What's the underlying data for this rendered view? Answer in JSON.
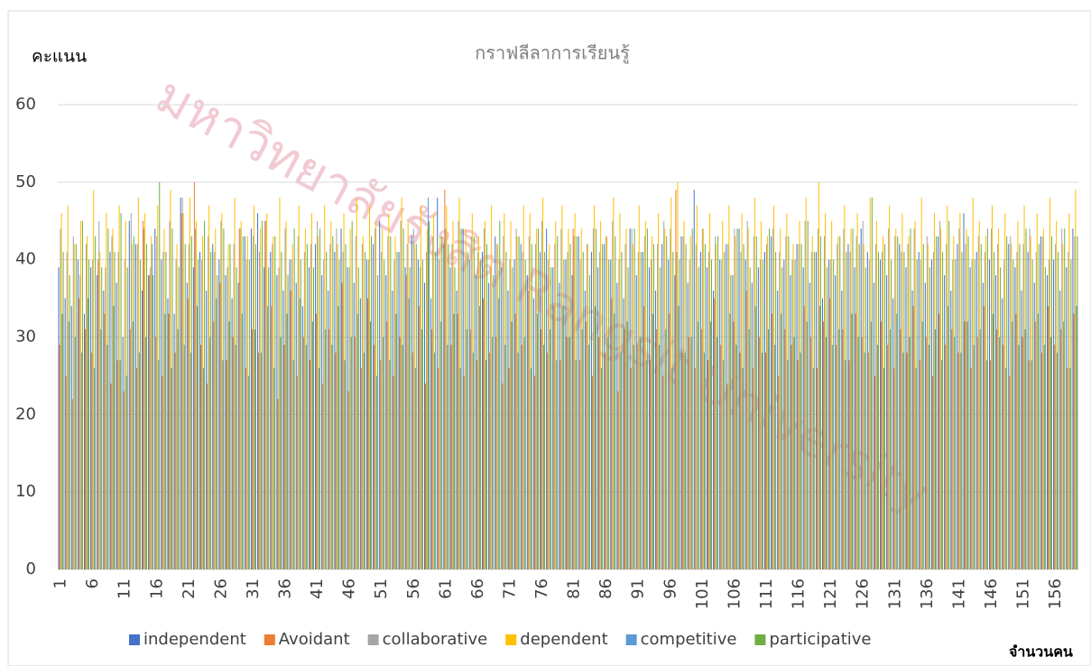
{
  "chart_data": {
    "type": "bar",
    "title": "กราฟลีลาการเรียนรู้",
    "y_label": "คะแนน",
    "x_label": "จำนวนคน",
    "watermark": "มหาวิทยาลัยรังสิต Rangsit University",
    "categories": [
      1,
      null,
      null,
      null,
      null,
      6,
      null,
      null,
      null,
      null,
      11,
      null,
      null,
      null,
      null,
      16,
      null,
      null,
      null,
      null,
      21,
      null,
      null,
      null,
      null,
      26,
      null,
      null,
      null,
      null,
      31,
      null,
      null,
      null,
      null,
      36,
      null,
      null,
      null,
      null,
      41,
      null,
      null,
      null,
      null,
      46,
      null,
      null,
      null,
      null,
      51,
      null,
      null,
      null,
      null,
      56,
      null,
      null,
      null,
      null,
      61,
      null,
      null,
      null,
      null,
      66,
      null,
      null,
      null,
      null,
      71,
      null,
      null,
      null,
      null,
      76,
      null,
      null,
      null,
      null,
      81,
      null,
      null,
      null,
      null,
      86,
      null,
      null,
      null,
      null,
      91,
      null,
      null,
      null,
      null,
      96,
      null,
      null,
      null,
      null,
      101,
      null,
      null,
      null,
      null,
      106,
      null,
      null,
      null,
      null,
      111,
      null,
      null,
      null,
      null,
      116,
      null,
      null,
      null,
      null,
      121,
      null,
      null,
      null,
      null,
      126,
      null,
      null,
      null,
      null,
      131,
      null,
      null,
      null,
      null,
      136,
      null,
      null,
      null,
      null,
      141,
      null,
      null,
      null,
      null,
      146,
      null,
      null,
      null,
      null,
      151,
      null,
      null,
      null,
      null,
      156,
      null,
      null,
      null
    ],
    "series": [
      {
        "name": "independent",
        "color": "#4472c4",
        "values": [
          39,
          35,
          34,
          40,
          33,
          39,
          38,
          36,
          41,
          37,
          30,
          45,
          42,
          36,
          38,
          44,
          40,
          35,
          33,
          48,
          37,
          39,
          41,
          36,
          42,
          40,
          38,
          35,
          37,
          43,
          44,
          46,
          39,
          41,
          38,
          36,
          40,
          37,
          34,
          39,
          42,
          38,
          36,
          41,
          44,
          39,
          37,
          35,
          40,
          42,
          45,
          38,
          36,
          41,
          39,
          43,
          40,
          37,
          35,
          48,
          42,
          39,
          36,
          44,
          40,
          38,
          41,
          37,
          43,
          39,
          36,
          40,
          42,
          38,
          35,
          41,
          44,
          39,
          37,
          40,
          38,
          43,
          36,
          41,
          39,
          42,
          40,
          37,
          35,
          44,
          38,
          41,
          39,
          36,
          42,
          40,
          38,
          43,
          37,
          49,
          41,
          39,
          36,
          40,
          42,
          38,
          44,
          40,
          37,
          39,
          41,
          43,
          36,
          40,
          38,
          42,
          39,
          37,
          41,
          35,
          40,
          38,
          36,
          42,
          39,
          44,
          41,
          37,
          40,
          38,
          35,
          42,
          39,
          36,
          41,
          37,
          40,
          43,
          38,
          36,
          42,
          46,
          39,
          41,
          37,
          40,
          38,
          35,
          42,
          39,
          36,
          41,
          37,
          43,
          38,
          40,
          36,
          39,
          44
        ]
      },
      {
        "name": "Avoidant",
        "color": "#ed7d31",
        "values": [
          29,
          25,
          22,
          35,
          31,
          28,
          40,
          33,
          24,
          27,
          23,
          31,
          26,
          45,
          38,
          30,
          25,
          33,
          28,
          46,
          35,
          50,
          29,
          24,
          32,
          37,
          27,
          30,
          44,
          26,
          31,
          28,
          45,
          34,
          22,
          29,
          36,
          25,
          30,
          27,
          33,
          24,
          31,
          28,
          37,
          23,
          30,
          26,
          35,
          29,
          27,
          32,
          25,
          30,
          38,
          28,
          34,
          24,
          31,
          26,
          49,
          29,
          33,
          25,
          31,
          27,
          35,
          28,
          30,
          24,
          26,
          33,
          29,
          36,
          25,
          31,
          28,
          34,
          27,
          30,
          44,
          27,
          32,
          25,
          30,
          28,
          35,
          23,
          31,
          26,
          29,
          34,
          27,
          31,
          25,
          33,
          49,
          28,
          30,
          26,
          31,
          27,
          35,
          29,
          24,
          32,
          28,
          36,
          26,
          30,
          28,
          33,
          25,
          31,
          29,
          27,
          34,
          30,
          26,
          32,
          35,
          29,
          31,
          27,
          33,
          30,
          28,
          25,
          32,
          29,
          26,
          31,
          28,
          34,
          27,
          30,
          25,
          33,
          29,
          31,
          28,
          32,
          26,
          30,
          34,
          27,
          31,
          29,
          25,
          33,
          30,
          27,
          32,
          28,
          34,
          29,
          31,
          26,
          33
        ]
      },
      {
        "name": "collaborative",
        "color": "#a5a5a5",
        "values": [
          44,
          41,
          43,
          38,
          42,
          40,
          45,
          39,
          43,
          41,
          40,
          46,
          42,
          44,
          39,
          43,
          41,
          45,
          40,
          48,
          42,
          44,
          40,
          43,
          41,
          45,
          39,
          42,
          44,
          40,
          43,
          41,
          45,
          42,
          39,
          44,
          40,
          43,
          41,
          42,
          45,
          40,
          42,
          44,
          41,
          39,
          43,
          42,
          40,
          44,
          41,
          43,
          40,
          45,
          42,
          44,
          39,
          41,
          43,
          40,
          44,
          42,
          45,
          40,
          43,
          41,
          44,
          39,
          42,
          43,
          40,
          44,
          41,
          43,
          42,
          45,
          40,
          42,
          44,
          41,
          43,
          40,
          42,
          44,
          41,
          43,
          45,
          40,
          42,
          44,
          41,
          43,
          40,
          42,
          45,
          44,
          41,
          43,
          40,
          42,
          44,
          41,
          43,
          40,
          42,
          44,
          41,
          45,
          43,
          40,
          42,
          44,
          41,
          43,
          40,
          42,
          45,
          41,
          44,
          43,
          40,
          42,
          44,
          41,
          43,
          45,
          40,
          42,
          41,
          44,
          43,
          41,
          42,
          44,
          40,
          43,
          41,
          45,
          42,
          40,
          44,
          42,
          40,
          43,
          41,
          44,
          42,
          40,
          43,
          41,
          42,
          44,
          41,
          43,
          40,
          42,
          44,
          41,
          43
        ]
      },
      {
        "name": "dependent",
        "color": "#ffc000",
        "values": [
          46,
          47,
          42,
          45,
          43,
          49,
          41,
          46,
          44,
          47,
          45,
          42,
          48,
          46,
          43,
          47,
          44,
          49,
          42,
          46,
          48,
          45,
          43,
          47,
          44,
          46,
          42,
          48,
          45,
          43,
          47,
          44,
          46,
          43,
          48,
          45,
          42,
          47,
          44,
          46,
          43,
          47,
          45,
          42,
          46,
          44,
          48,
          43,
          47,
          45,
          44,
          46,
          43,
          48,
          45,
          42,
          47,
          44,
          46,
          43,
          47,
          45,
          48,
          44,
          46,
          43,
          45,
          47,
          42,
          46,
          45,
          43,
          47,
          46,
          44,
          48,
          42,
          45,
          47,
          44,
          46,
          44,
          42,
          47,
          45,
          43,
          48,
          46,
          44,
          42,
          47,
          45,
          43,
          46,
          44,
          48,
          50,
          45,
          43,
          47,
          44,
          46,
          42,
          45,
          47,
          43,
          46,
          44,
          48,
          45,
          43,
          47,
          44,
          46,
          42,
          45,
          48,
          43,
          50,
          46,
          45,
          43,
          47,
          44,
          46,
          42,
          48,
          45,
          43,
          47,
          44,
          46,
          43,
          45,
          48,
          42,
          46,
          44,
          47,
          43,
          46,
          44,
          48,
          45,
          43,
          47,
          44,
          46,
          42,
          45,
          47,
          43,
          46,
          44,
          48,
          45,
          42,
          46,
          49
        ]
      },
      {
        "name": "competitive",
        "color": "#5b9bd5",
        "values": [
          33,
          32,
          30,
          28,
          35,
          26,
          31,
          29,
          34,
          27,
          25,
          32,
          28,
          30,
          42,
          27,
          33,
          26,
          31,
          29,
          28,
          34,
          26,
          30,
          35,
          27,
          32,
          29,
          33,
          25,
          31,
          28,
          34,
          26,
          30,
          33,
          27,
          35,
          29,
          32,
          26,
          31,
          29,
          34,
          27,
          30,
          33,
          28,
          32,
          25,
          30,
          27,
          33,
          29,
          35,
          26,
          31,
          48,
          28,
          32,
          29,
          33,
          26,
          31,
          28,
          34,
          27,
          30,
          35,
          29,
          32,
          28,
          30,
          26,
          33,
          29,
          31,
          27,
          34,
          30,
          27,
          31,
          29,
          34,
          26,
          30,
          33,
          28,
          32,
          29,
          30,
          27,
          33,
          29,
          31,
          26,
          34,
          28,
          30,
          32,
          28,
          32,
          30,
          27,
          33,
          29,
          26,
          31,
          34,
          28,
          31,
          29,
          33,
          27,
          30,
          28,
          32,
          26,
          34,
          30,
          29,
          31,
          27,
          33,
          30,
          28,
          32,
          29,
          26,
          31,
          33,
          28,
          30,
          26,
          32,
          29,
          31,
          27,
          34,
          30,
          28,
          32,
          29,
          31,
          27,
          33,
          30,
          26,
          32,
          29,
          31,
          27,
          33,
          29,
          30,
          28,
          32,
          26,
          34
        ]
      },
      {
        "name": "participative",
        "color": "#70ad47",
        "values": [
          41,
          38,
          42,
          45,
          40,
          43,
          39,
          44,
          41,
          46,
          39,
          43,
          40,
          42,
          38,
          50,
          41,
          44,
          39,
          42,
          43,
          40,
          45,
          41,
          38,
          44,
          42,
          39,
          43,
          40,
          42,
          45,
          39,
          43,
          41,
          38,
          44,
          40,
          42,
          39,
          44,
          41,
          43,
          40,
          42,
          45,
          39,
          41,
          43,
          38,
          40,
          43,
          41,
          44,
          39,
          42,
          40,
          45,
          41,
          43,
          42,
          39,
          44,
          41,
          43,
          40,
          42,
          38,
          45,
          41,
          39,
          43,
          40,
          42,
          44,
          41,
          39,
          43,
          40,
          42,
          43,
          41,
          38,
          44,
          42,
          40,
          43,
          41,
          39,
          44,
          41,
          44,
          42,
          39,
          43,
          41,
          40,
          42,
          44,
          39,
          42,
          40,
          43,
          41,
          38,
          44,
          42,
          39,
          43,
          40,
          44,
          41,
          39,
          43,
          40,
          42,
          45,
          41,
          43,
          39,
          40,
          43,
          41,
          44,
          42,
          39,
          48,
          41,
          42,
          40,
          43,
          41,
          44,
          40,
          42,
          39,
          43,
          41,
          45,
          40,
          41,
          43,
          40,
          42,
          44,
          41,
          39,
          43,
          40,
          42,
          44,
          40,
          42,
          39,
          43,
          41,
          44,
          40,
          43
        ]
      }
    ],
    "ylim": [
      0,
      60
    ],
    "yticks": [
      0,
      10,
      20,
      30,
      40,
      50,
      60
    ],
    "grid": true,
    "legend": "bottom"
  }
}
